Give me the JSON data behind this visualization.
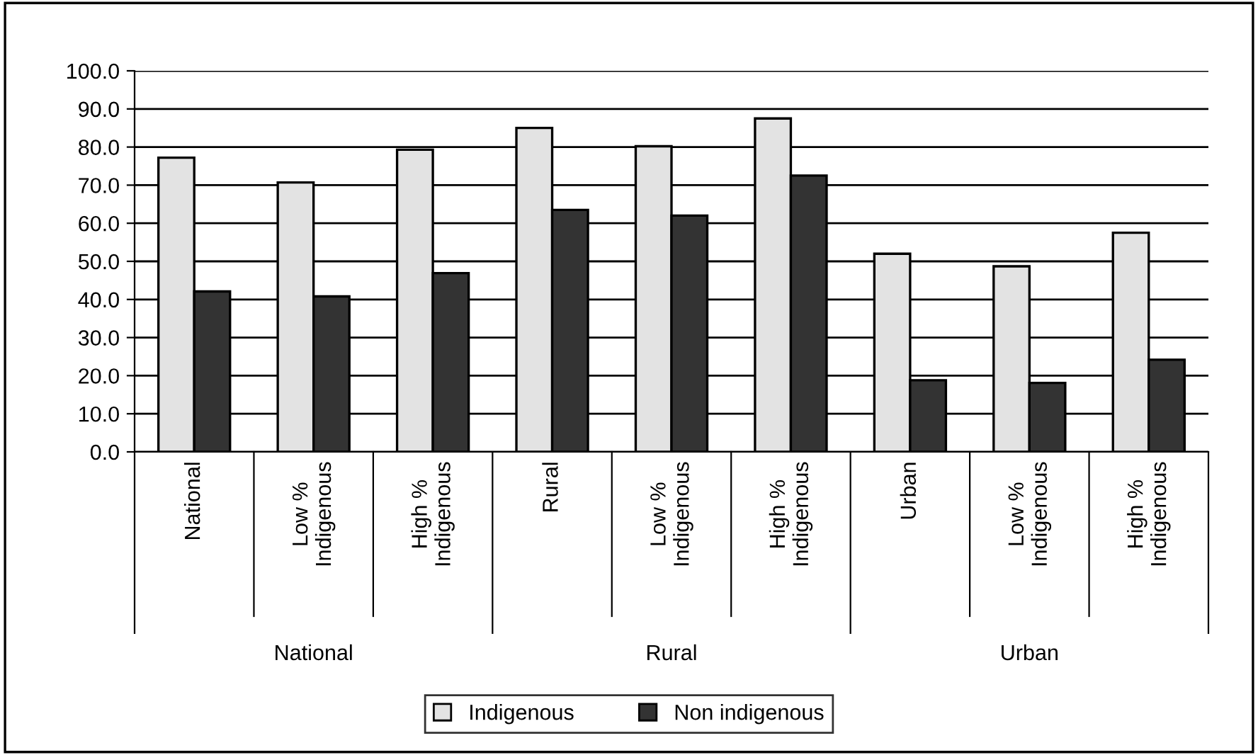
{
  "chart_data": {
    "type": "bar",
    "categories": [
      "National",
      "Low %\nIndigenous",
      "High %\nIndigenous",
      "Rural",
      "Low %\nIndigenous",
      "High %\nIndigenous",
      "Urban",
      "Low %\nIndigenous",
      "High %\nIndigenous"
    ],
    "series": [
      {
        "name": "Indigenous",
        "color": "#e3e3e3",
        "values": [
          77.2,
          70.7,
          79.3,
          85.0,
          80.2,
          87.5,
          52.0,
          48.7,
          57.5
        ]
      },
      {
        "name": "Non indigenous",
        "color": "#333333",
        "values": [
          42.1,
          40.8,
          46.9,
          63.5,
          62.0,
          72.5,
          18.8,
          18.1,
          24.2
        ]
      }
    ],
    "annotations": [
      "National",
      "Rural",
      "Urban"
    ],
    "ylim": [
      0,
      100
    ],
    "yticks": [
      {
        "value": 0,
        "label": "0.0"
      },
      {
        "value": 10,
        "label": "10.0"
      },
      {
        "value": 20,
        "label": "20.0"
      },
      {
        "value": 30,
        "label": "30.0"
      },
      {
        "value": 40,
        "label": "40.0"
      },
      {
        "value": 50,
        "label": "50.0"
      },
      {
        "value": 60,
        "label": "60.0"
      },
      {
        "value": 70,
        "label": "70.0"
      },
      {
        "value": 80,
        "label": "80.0"
      },
      {
        "value": 90,
        "label": "90.0"
      },
      {
        "value": 100,
        "label": "100.0"
      }
    ],
    "grid": "y",
    "legend": "bottom"
  }
}
